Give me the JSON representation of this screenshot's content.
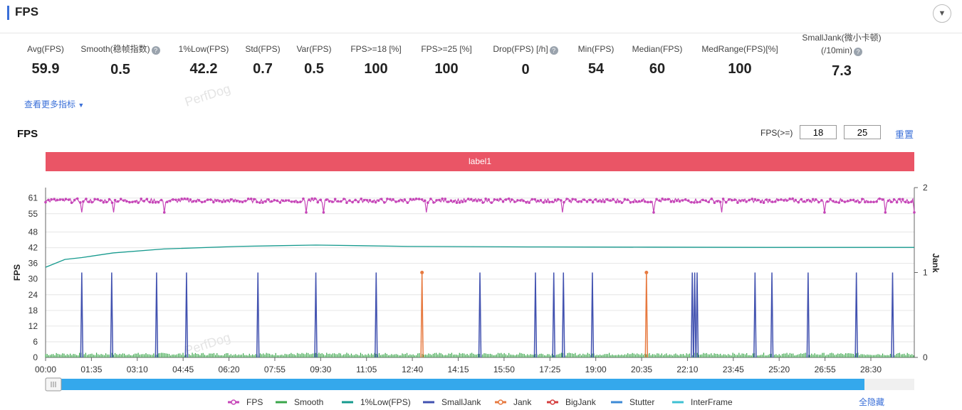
{
  "header": {
    "title": "FPS",
    "collapse_icon": "chevron-down-icon"
  },
  "metrics": [
    {
      "label": "Avg(FPS)",
      "value": "59.9",
      "help": false
    },
    {
      "label": "Smooth(稳帧指数)",
      "value": "0.5",
      "help": true
    },
    {
      "label": "1%Low(FPS)",
      "value": "42.2",
      "help": false
    },
    {
      "label": "Std(FPS)",
      "value": "0.7",
      "help": false
    },
    {
      "label": "Var(FPS)",
      "value": "0.5",
      "help": false
    },
    {
      "label": "FPS>=18 [%]",
      "value": "100",
      "help": false
    },
    {
      "label": "FPS>=25 [%]",
      "value": "100",
      "help": false
    },
    {
      "label": "Drop(FPS) [/h]",
      "value": "0",
      "help": true
    },
    {
      "label": "Min(FPS)",
      "value": "54",
      "help": false
    },
    {
      "label": "Median(FPS)",
      "value": "60",
      "help": false
    },
    {
      "label": "MedRange(FPS)[%]",
      "value": "100",
      "help": false
    },
    {
      "label": "SmallJank(微小卡顿)",
      "label2": "(/10min)",
      "value": "7.3",
      "help": true
    }
  ],
  "more_link": "查看更多指标",
  "chart_title": "FPS",
  "threshold": {
    "label": "FPS(>=)",
    "value1": "18",
    "value2": "25",
    "reset_label": "重置"
  },
  "label_bar": "label1",
  "colors": {
    "fps": "#c646b8",
    "smooth": "#3aa64a",
    "low": "#169a8e",
    "smalljank": "#4252b0",
    "jank": "#e77a40",
    "bigjank": "#d43d3d",
    "stutter": "#3c8ad6",
    "interframe": "#3ec1d3",
    "label_bar": "#ea5566",
    "scrollbar": "#34a8ec"
  },
  "chart_data": {
    "type": "line",
    "title": "FPS",
    "ylabel": "FPS",
    "ylabel_right": "Jank",
    "ylim": [
      0,
      65
    ],
    "ylim_right": [
      0,
      2
    ],
    "y_ticks": [
      0,
      6,
      12,
      18,
      24,
      30,
      36,
      42,
      48,
      55,
      61
    ],
    "y_ticks_right": [
      0,
      1,
      2
    ],
    "x_ticks": [
      "00:00",
      "01:35",
      "03:10",
      "04:45",
      "06:20",
      "07:55",
      "09:30",
      "11:05",
      "12:40",
      "14:15",
      "15:50",
      "17:25",
      "19:00",
      "20:35",
      "22:10",
      "23:45",
      "25:20",
      "26:55",
      "28:30"
    ],
    "x_tick_seconds": 95,
    "duration_seconds": 1800,
    "grid": true,
    "legend_position": "bottom",
    "series": [
      {
        "name": "FPS",
        "baseline": 60,
        "dips_seconds": [
          75,
          140,
          245,
          540,
          575,
          790,
          1070,
          1260,
          1400,
          1615,
          1740,
          1800
        ]
      },
      {
        "name": "Smooth",
        "baseline": 0.5
      },
      {
        "name": "1%Low(FPS)",
        "x_seconds": [
          0,
          40,
          75,
          140,
          245,
          400,
          560,
          750,
          1000,
          1250,
          1500,
          1800
        ],
        "values": [
          34.5,
          37.5,
          38.2,
          40.0,
          41.5,
          42.5,
          43.0,
          42.5,
          42.3,
          42.2,
          42.1,
          42.1
        ]
      },
      {
        "name": "SmallJank",
        "x_seconds": [
          75,
          137,
          230,
          292,
          440,
          560,
          685,
          900,
          1015,
          1053,
          1073,
          1133,
          1340,
          1345,
          1350,
          1470,
          1505,
          1580,
          1680,
          1755
        ],
        "values": [
          1,
          1,
          1,
          1,
          1,
          1,
          1,
          1,
          1,
          1,
          1,
          1,
          1,
          1,
          1,
          1,
          1,
          1,
          1,
          1
        ]
      },
      {
        "name": "Jank",
        "x_seconds": [
          780,
          1245
        ],
        "values": [
          1,
          1
        ]
      },
      {
        "name": "BigJank",
        "x_seconds": [],
        "values": []
      },
      {
        "name": "Stutter",
        "x_seconds": [],
        "values": []
      },
      {
        "name": "InterFrame",
        "x_seconds": [],
        "values": []
      }
    ]
  },
  "legend_hide_all": "全隐藏",
  "watermark": "PerfDog"
}
